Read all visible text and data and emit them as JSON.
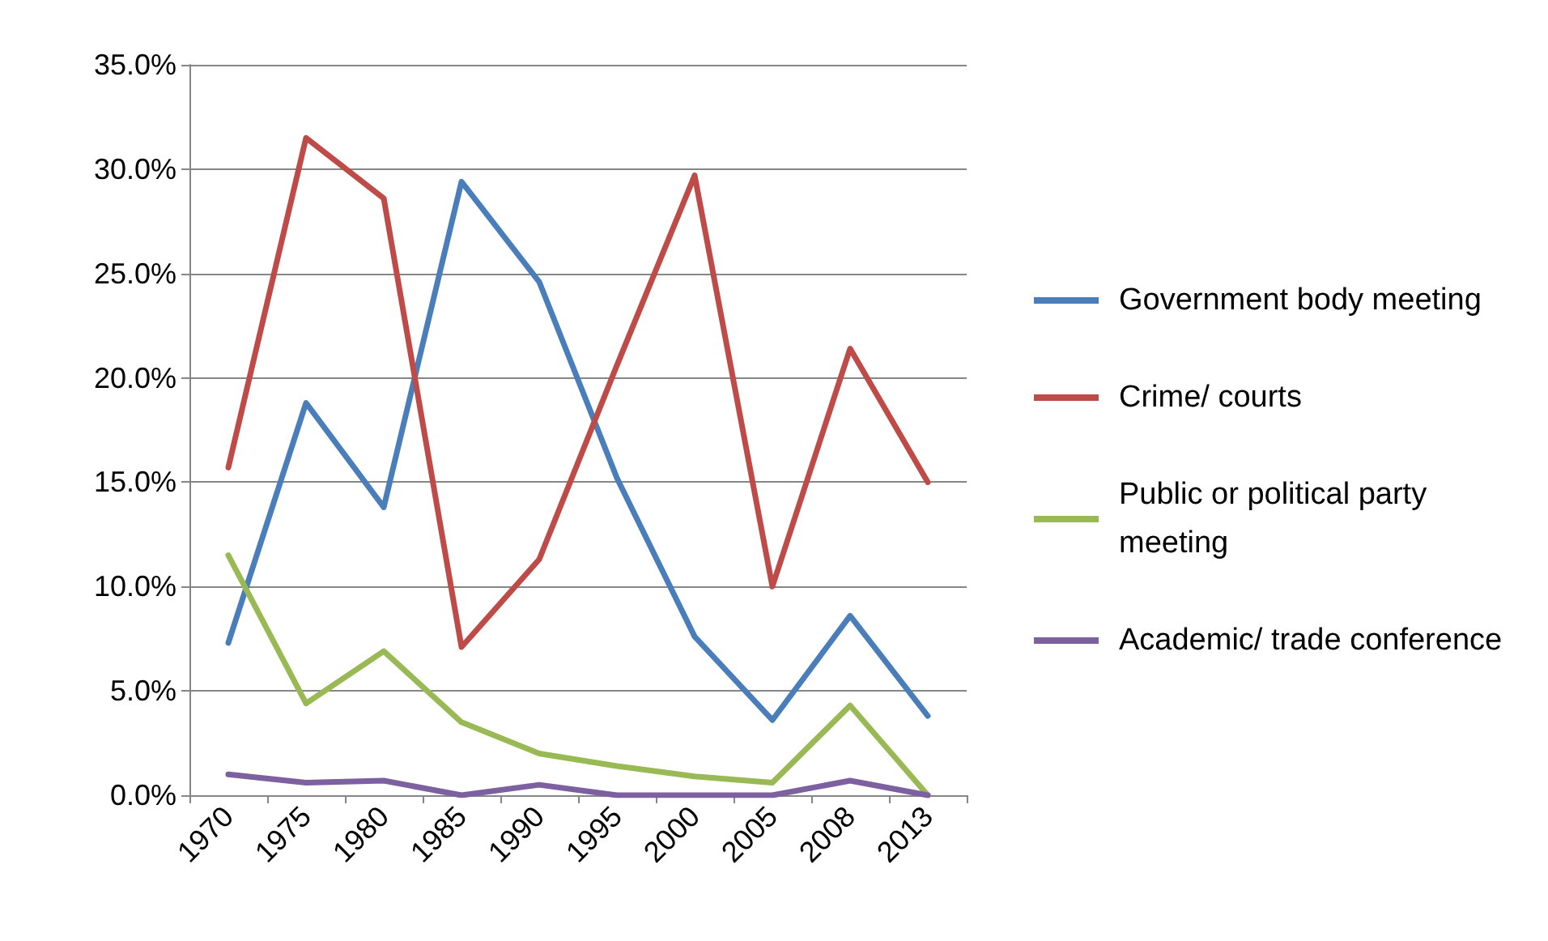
{
  "chart_data": {
    "type": "line",
    "categories": [
      "1970",
      "1975",
      "1980",
      "1985",
      "1990",
      "1995",
      "2000",
      "2005",
      "2008",
      "2013"
    ],
    "series": [
      {
        "name": "Government body meeting",
        "color": "#4a7ebb",
        "values": [
          7.3,
          18.8,
          13.8,
          29.4,
          24.6,
          15.2,
          7.6,
          3.6,
          8.6,
          3.8
        ]
      },
      {
        "name": "Crime/ courts",
        "color": "#be4b48",
        "values": [
          15.7,
          31.5,
          28.6,
          7.1,
          11.3,
          20.6,
          29.7,
          10.0,
          21.4,
          15.0
        ]
      },
      {
        "name": "Public or political party meeting",
        "color": "#98b954",
        "values": [
          11.5,
          4.4,
          6.9,
          3.5,
          2.0,
          1.4,
          0.9,
          0.6,
          4.3,
          0.0
        ]
      },
      {
        "name": "Academic/ trade conference",
        "color": "#7d60a0",
        "values": [
          1.0,
          0.6,
          0.7,
          0.0,
          0.5,
          0.0,
          0.0,
          0.0,
          0.7,
          0.0
        ]
      }
    ],
    "ylim": [
      0,
      35
    ],
    "yticks": [
      {
        "value": 0,
        "label": "0.0%"
      },
      {
        "value": 5,
        "label": "5.0%"
      },
      {
        "value": 10,
        "label": "10.0%"
      },
      {
        "value": 15,
        "label": "15.0%"
      },
      {
        "value": 20,
        "label": "20.0%"
      },
      {
        "value": 25,
        "label": "25.0%"
      },
      {
        "value": 30,
        "label": "30.0%"
      },
      {
        "value": 35,
        "label": "35.0%"
      }
    ],
    "grid": "y",
    "legend": "right",
    "marker": "none",
    "line_style": "solid"
  }
}
